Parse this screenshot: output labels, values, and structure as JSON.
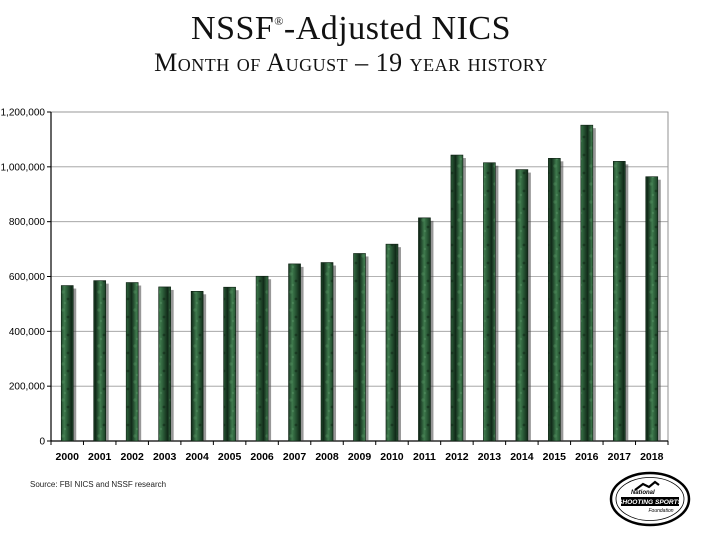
{
  "title": {
    "main": "NSSF",
    "mark": "®",
    "main_suffix": "-Adjusted NICS",
    "subtitle": "Month of August – 19 year history"
  },
  "source": "Source: FBI NICS and NSSF research",
  "logo": {
    "name": "National Shooting Sports Foundation",
    "line1": "National",
    "line2": "SHOOTING SPORTS",
    "line3": "Foundation"
  },
  "colors": {
    "bar_fill": "#1f4a2c",
    "bar_highlight": "#4e8a5b",
    "grid": "#9a9a9a",
    "axis": "#000000"
  },
  "chart_data": {
    "type": "bar",
    "categories": [
      "2000",
      "2001",
      "2002",
      "2003",
      "2004",
      "2005",
      "2006",
      "2007",
      "2008",
      "2009",
      "2010",
      "2011",
      "2012",
      "2013",
      "2014",
      "2015",
      "2016",
      "2017",
      "2018"
    ],
    "values": [
      567000,
      585000,
      578000,
      562000,
      546000,
      561000,
      601000,
      646000,
      651000,
      684000,
      718000,
      814000,
      1043000,
      1015000,
      990000,
      1031000,
      1152000,
      1020000,
      964000
    ],
    "ylim": [
      0,
      1200000
    ],
    "yticks": [
      0,
      200000,
      400000,
      600000,
      800000,
      1000000,
      1200000
    ],
    "ytick_labels": [
      "0",
      "200,000",
      "400,000",
      "600,000",
      "800,000",
      "1,000,000",
      "1,200,000"
    ],
    "grid": true,
    "legend": "none"
  }
}
